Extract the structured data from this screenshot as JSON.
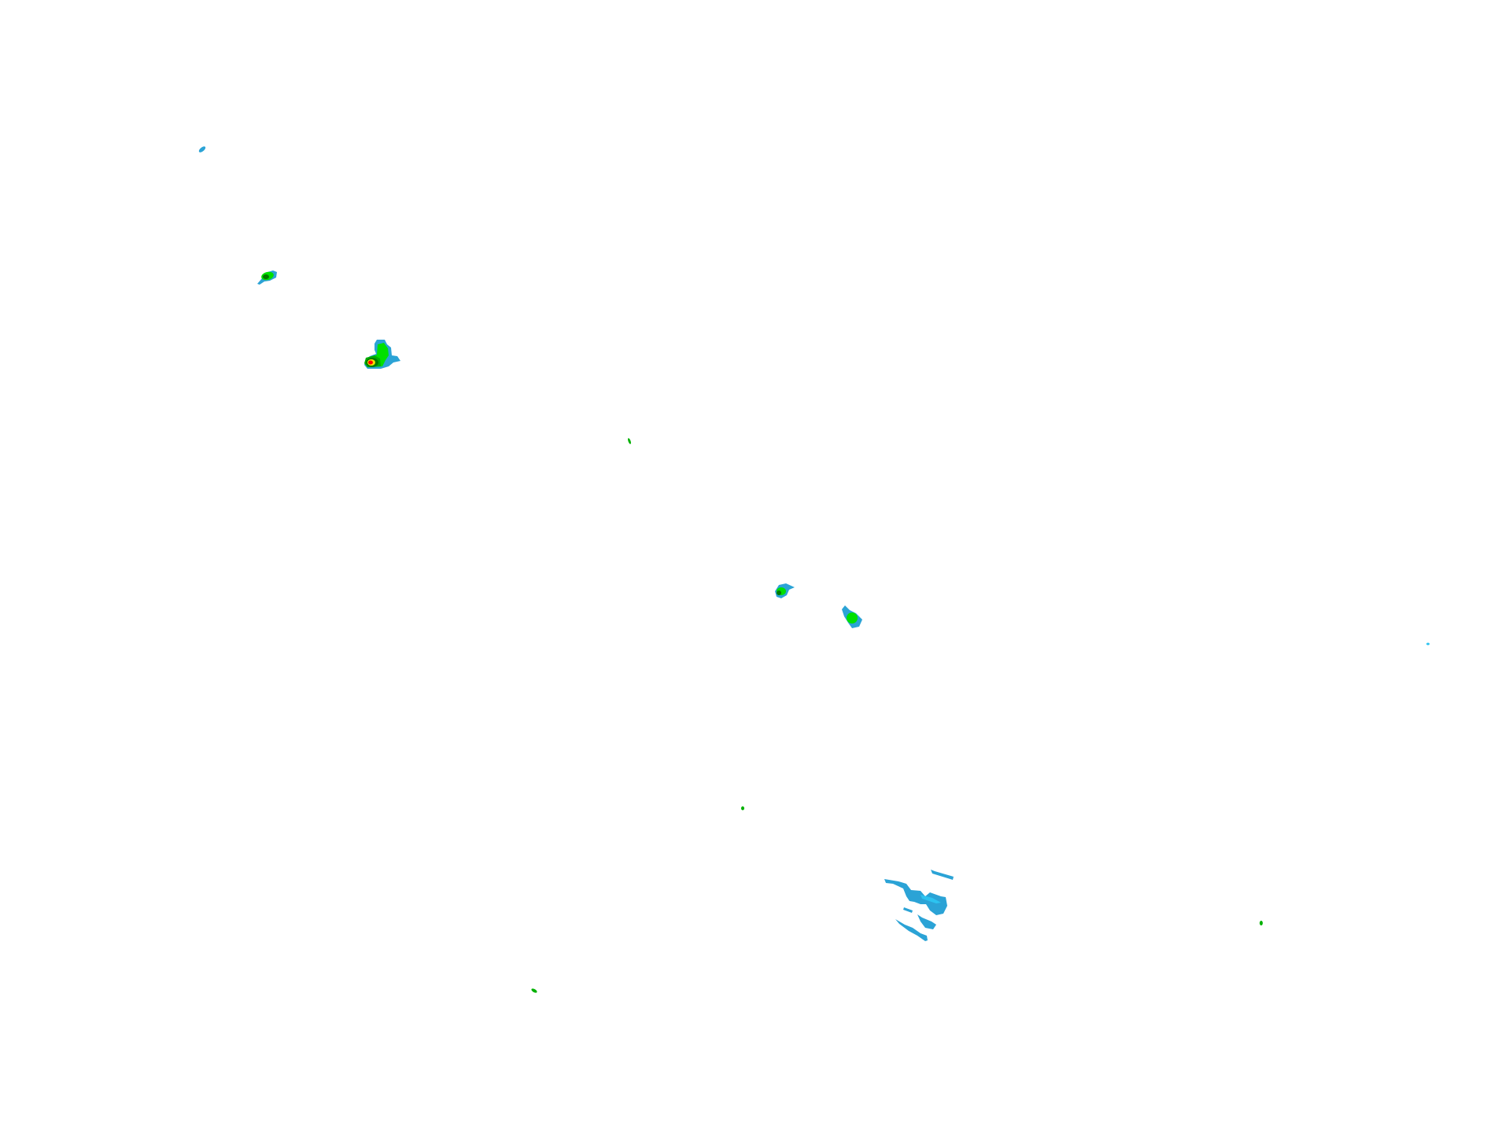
{
  "map": {
    "background": "#ffffff",
    "palette": {
      "light_blue": "#2ba3d6",
      "cyan": "#2cc3f0",
      "green": "#00e000",
      "mid_green": "#00b000",
      "dark_green": "#007a00",
      "yellow": "#f0e000",
      "orange": "#ff9000",
      "red": "#ff0000"
    }
  }
}
